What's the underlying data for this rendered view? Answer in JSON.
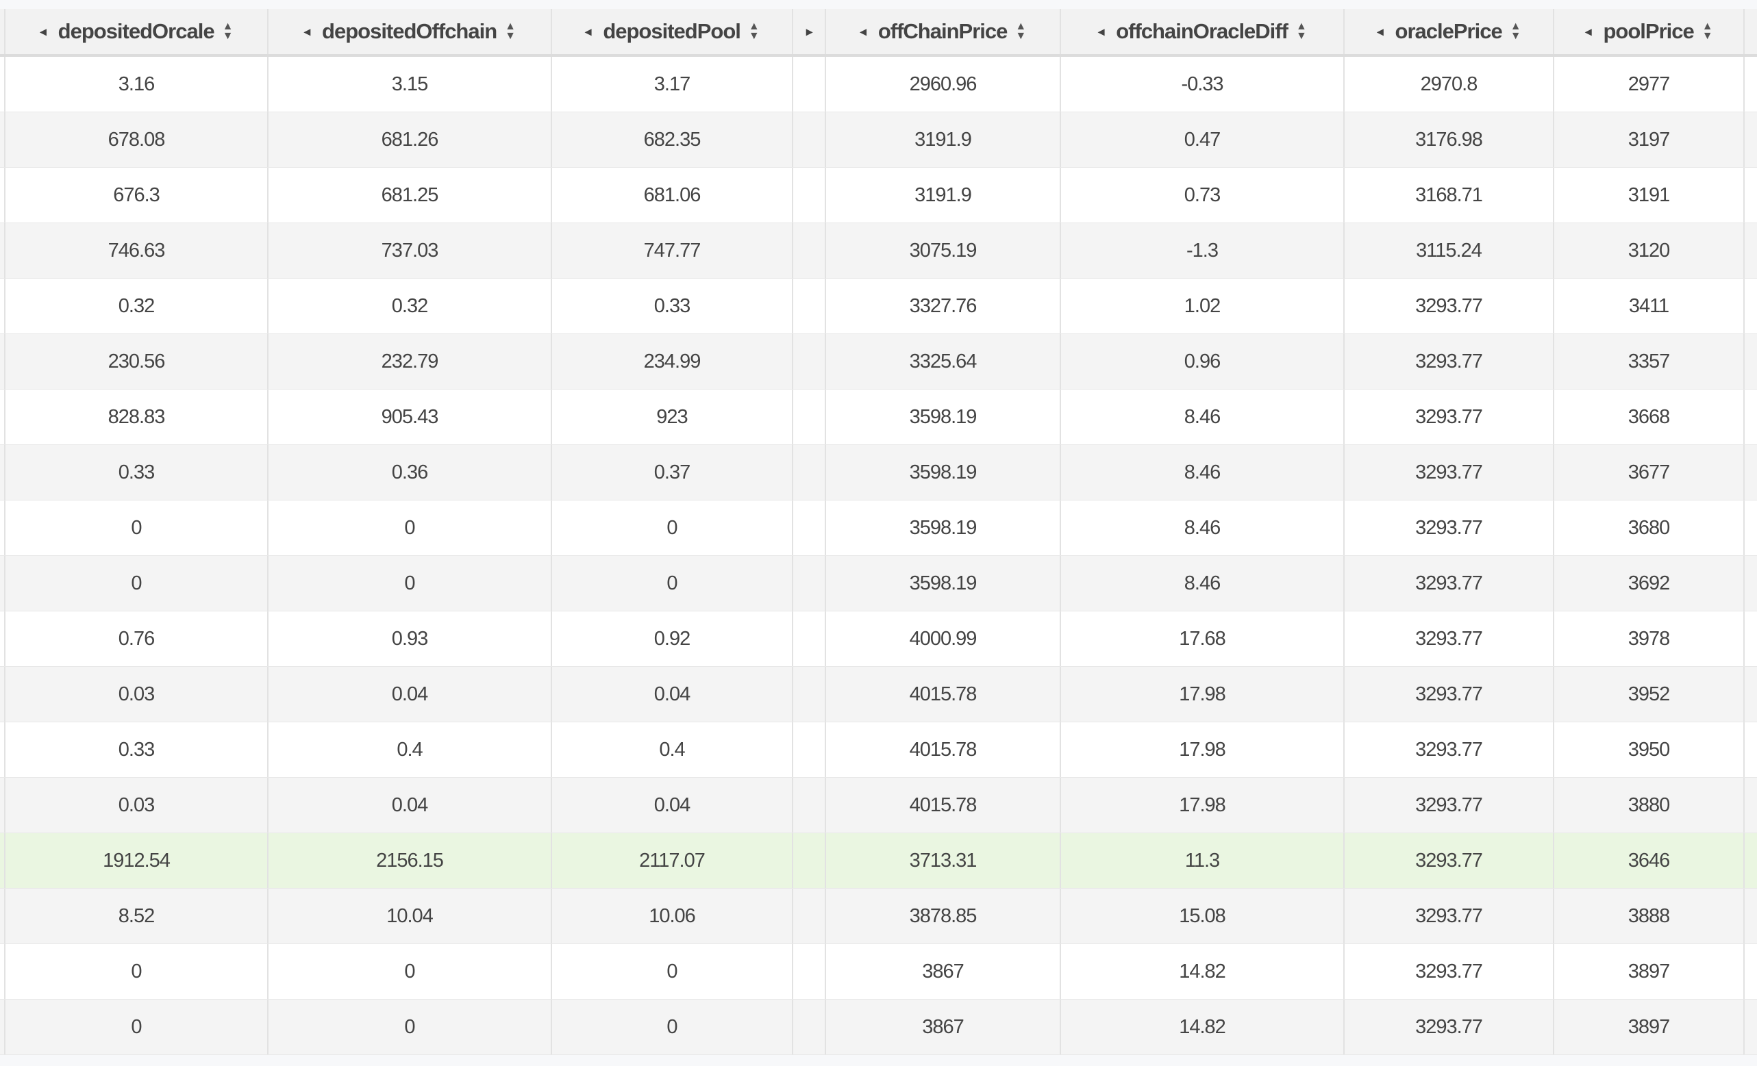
{
  "columns": [
    {
      "label": "depositedOrcale",
      "key": "depositedOrcale"
    },
    {
      "label": "depositedOffchain",
      "key": "depositedOffchain"
    },
    {
      "label": "depositedPool",
      "key": "depositedPool"
    },
    {
      "label": "",
      "key": "collapsed"
    },
    {
      "label": "offChainPrice",
      "key": "offChainPrice"
    },
    {
      "label": "offchainOracleDiff",
      "key": "offchainOracleDiff"
    },
    {
      "label": "oraclePrice",
      "key": "oraclePrice"
    },
    {
      "label": "poolPrice",
      "key": "poolPrice"
    }
  ],
  "icons": {
    "collapse": "caret-left-icon",
    "expand": "caret-right-icon",
    "sort": "sort-up-down-icon"
  },
  "colors": {
    "highlight_row": "#eaf6e1"
  },
  "highlighted_row_index": 14,
  "rows": [
    [
      "3.16",
      "3.15",
      "3.17",
      "",
      "2960.96",
      "-0.33",
      "2970.8",
      "2977"
    ],
    [
      "678.08",
      "681.26",
      "682.35",
      "",
      "3191.9",
      "0.47",
      "3176.98",
      "3197"
    ],
    [
      "676.3",
      "681.25",
      "681.06",
      "",
      "3191.9",
      "0.73",
      "3168.71",
      "3191"
    ],
    [
      "746.63",
      "737.03",
      "747.77",
      "",
      "3075.19",
      "-1.3",
      "3115.24",
      "3120"
    ],
    [
      "0.32",
      "0.32",
      "0.33",
      "",
      "3327.76",
      "1.02",
      "3293.77",
      "3411"
    ],
    [
      "230.56",
      "232.79",
      "234.99",
      "",
      "3325.64",
      "0.96",
      "3293.77",
      "3357"
    ],
    [
      "828.83",
      "905.43",
      "923",
      "",
      "3598.19",
      "8.46",
      "3293.77",
      "3668"
    ],
    [
      "0.33",
      "0.36",
      "0.37",
      "",
      "3598.19",
      "8.46",
      "3293.77",
      "3677"
    ],
    [
      "0",
      "0",
      "0",
      "",
      "3598.19",
      "8.46",
      "3293.77",
      "3680"
    ],
    [
      "0",
      "0",
      "0",
      "",
      "3598.19",
      "8.46",
      "3293.77",
      "3692"
    ],
    [
      "0.76",
      "0.93",
      "0.92",
      "",
      "4000.99",
      "17.68",
      "3293.77",
      "3978"
    ],
    [
      "0.03",
      "0.04",
      "0.04",
      "",
      "4015.78",
      "17.98",
      "3293.77",
      "3952"
    ],
    [
      "0.33",
      "0.4",
      "0.4",
      "",
      "4015.78",
      "17.98",
      "3293.77",
      "3950"
    ],
    [
      "0.03",
      "0.04",
      "0.04",
      "",
      "4015.78",
      "17.98",
      "3293.77",
      "3880"
    ],
    [
      "1912.54",
      "2156.15",
      "2117.07",
      "",
      "3713.31",
      "11.3",
      "3293.77",
      "3646"
    ],
    [
      "8.52",
      "10.04",
      "10.06",
      "",
      "3878.85",
      "15.08",
      "3293.77",
      "3888"
    ],
    [
      "0",
      "0",
      "0",
      "",
      "3867",
      "14.82",
      "3293.77",
      "3897"
    ],
    [
      "0",
      "0",
      "0",
      "",
      "3867",
      "14.82",
      "3293.77",
      "3897"
    ]
  ]
}
